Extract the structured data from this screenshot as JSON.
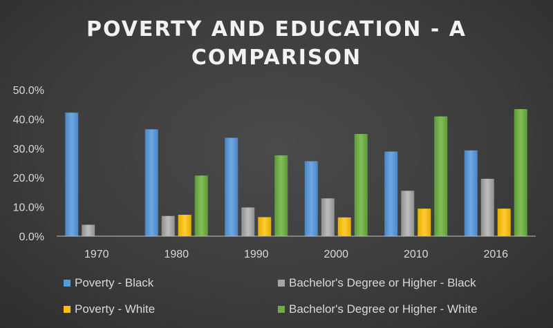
{
  "chart_data": {
    "type": "bar",
    "title_lines": [
      "POVERTY AND EDUCATION - A",
      "COMPARISON"
    ],
    "categories": [
      "1970",
      "1980",
      "1990",
      "2000",
      "2010",
      "2016"
    ],
    "ylim": [
      0,
      50
    ],
    "yticks": [
      "0.0%",
      "10.0%",
      "20.0%",
      "30.0%",
      "40.0%",
      "50.0%"
    ],
    "grid": false,
    "legend_position": "bottom",
    "series": [
      {
        "name": "Poverty - Black",
        "color": "#5b9bd5",
        "values": [
          42.2,
          36.5,
          33.6,
          25.6,
          28.9,
          29.3
        ]
      },
      {
        "name": "Bachelor's Degree or Higher - Black",
        "color": "#a5a5a5",
        "values": [
          3.9,
          6.9,
          9.8,
          12.9,
          15.5,
          19.6
        ]
      },
      {
        "name": "Poverty - White",
        "color": "#ffc000",
        "values": [
          0,
          7.3,
          6.5,
          6.4,
          9.4,
          9.4
        ]
      },
      {
        "name": "Bachelor's Degree or Higher - White",
        "color": "#70ad47",
        "values": [
          0,
          20.7,
          27.6,
          34.9,
          40.9,
          43.4
        ]
      }
    ]
  }
}
